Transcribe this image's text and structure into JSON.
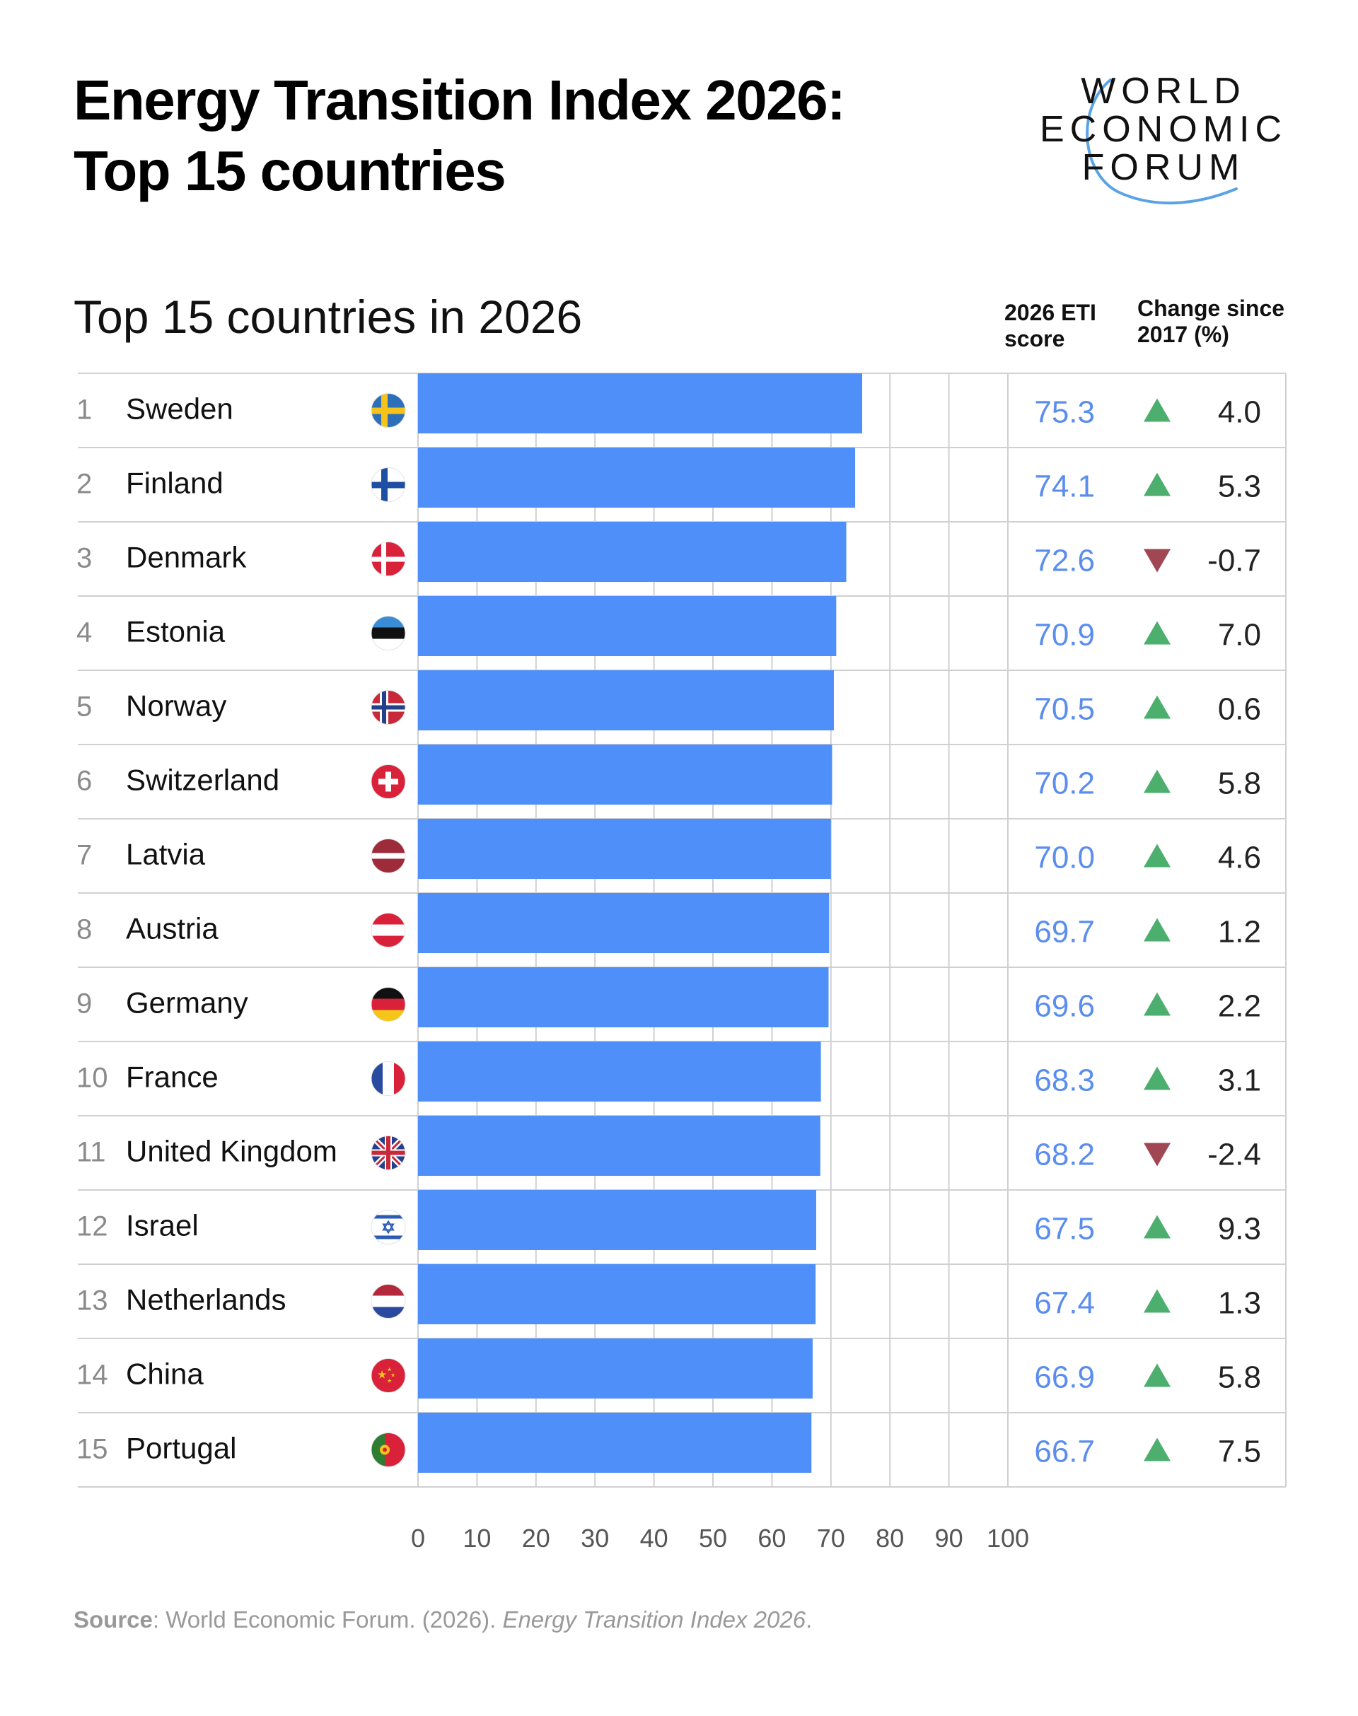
{
  "title": {
    "line1": "Energy Transition Index 2026:",
    "line2": "Top 15 countries"
  },
  "logo": {
    "line1": "WORLD",
    "line2": "ECONOMIC",
    "line3": "FORUM"
  },
  "colors": {
    "bar": "#4f8ffa",
    "score": "#5b8def",
    "up": "#4caf6e",
    "down": "#a14653",
    "grid": "#d0d0d0",
    "rank": "#8a8a8a"
  },
  "chart_data": {
    "type": "bar",
    "orientation": "horizontal",
    "title": "Top 15 countries in 2026",
    "score_header": [
      "2026 ETI",
      "score"
    ],
    "change_header": [
      "Change since",
      "2017 (%)"
    ],
    "xlim": [
      0,
      100
    ],
    "xticks": [
      "0",
      "10",
      "20",
      "30",
      "40",
      "50",
      "60",
      "70",
      "80",
      "90",
      "100"
    ],
    "grid": true,
    "rows": [
      {
        "rank": "1",
        "country": "Sweden",
        "flag": "sweden-flag",
        "score": 75.3,
        "score_label": "75.3",
        "change": 4.0,
        "change_label": "4.0"
      },
      {
        "rank": "2",
        "country": "Finland",
        "flag": "finland-flag",
        "score": 74.1,
        "score_label": "74.1",
        "change": 5.3,
        "change_label": "5.3"
      },
      {
        "rank": "3",
        "country": "Denmark",
        "flag": "denmark-flag",
        "score": 72.6,
        "score_label": "72.6",
        "change": -0.7,
        "change_label": "-0.7"
      },
      {
        "rank": "4",
        "country": "Estonia",
        "flag": "estonia-flag",
        "score": 70.9,
        "score_label": "70.9",
        "change": 7.0,
        "change_label": "7.0"
      },
      {
        "rank": "5",
        "country": "Norway",
        "flag": "norway-flag",
        "score": 70.5,
        "score_label": "70.5",
        "change": 0.6,
        "change_label": "0.6"
      },
      {
        "rank": "6",
        "country": "Switzerland",
        "flag": "switzerland-flag",
        "score": 70.2,
        "score_label": "70.2",
        "change": 5.8,
        "change_label": "5.8"
      },
      {
        "rank": "7",
        "country": "Latvia",
        "flag": "latvia-flag",
        "score": 70.0,
        "score_label": "70.0",
        "change": 4.6,
        "change_label": "4.6"
      },
      {
        "rank": "8",
        "country": "Austria",
        "flag": "austria-flag",
        "score": 69.7,
        "score_label": "69.7",
        "change": 1.2,
        "change_label": "1.2"
      },
      {
        "rank": "9",
        "country": "Germany",
        "flag": "germany-flag",
        "score": 69.6,
        "score_label": "69.6",
        "change": 2.2,
        "change_label": "2.2"
      },
      {
        "rank": "10",
        "country": "France",
        "flag": "france-flag",
        "score": 68.3,
        "score_label": "68.3",
        "change": 3.1,
        "change_label": "3.1"
      },
      {
        "rank": "11",
        "country": "United Kingdom",
        "flag": "united-kingdom-flag",
        "score": 68.2,
        "score_label": "68.2",
        "change": -2.4,
        "change_label": "-2.4"
      },
      {
        "rank": "12",
        "country": "Israel",
        "flag": "israel-flag",
        "score": 67.5,
        "score_label": "67.5",
        "change": 9.3,
        "change_label": "9.3"
      },
      {
        "rank": "13",
        "country": "Netherlands",
        "flag": "netherlands-flag",
        "score": 67.4,
        "score_label": "67.4",
        "change": 1.3,
        "change_label": "1.3"
      },
      {
        "rank": "14",
        "country": "China",
        "flag": "china-flag",
        "score": 66.9,
        "score_label": "66.9",
        "change": 5.8,
        "change_label": "5.8"
      },
      {
        "rank": "15",
        "country": "Portugal",
        "flag": "portugal-flag",
        "score": 66.7,
        "score_label": "66.7",
        "change": 7.5,
        "change_label": "7.5"
      }
    ]
  },
  "source": {
    "label": "Source",
    "text": ": World Economic Forum. (2026). ",
    "italic": "Energy Transition Index 2026",
    "end": "."
  }
}
